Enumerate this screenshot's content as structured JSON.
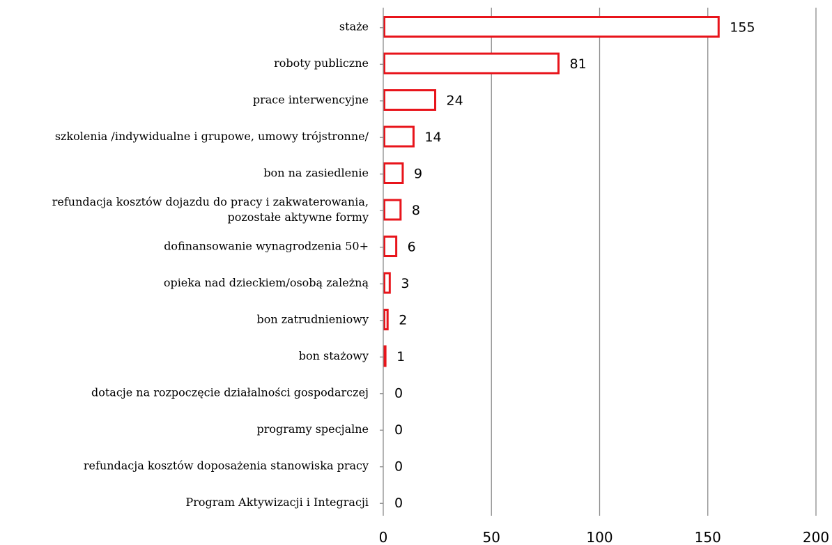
{
  "chart_data": {
    "type": "bar",
    "orientation": "horizontal",
    "title": "",
    "xlabel": "",
    "ylabel": "",
    "categories": [
      "staże",
      "roboty publiczne",
      "prace interwencyjne",
      "szkolenia /indywidualne i grupowe, umowy trójstronne/",
      "bon na  zasiedlenie",
      "refundacja kosztów dojazdu do pracy i zakwaterowania, pozostałe aktywne formy",
      "dofinansowanie wynagrodzenia 50+",
      "opieka nad dzieckiem/osobą zależną",
      "bon zatrudnieniowy",
      "bon stażowy",
      "dotacje na rozpoczęcie działalności gospodarczej",
      "programy specjalne",
      "refundacja kosztów doposażenia stanowiska pracy",
      "Program Aktywizacji i Integracji"
    ],
    "category_lines": [
      [
        "staże"
      ],
      [
        "roboty publiczne"
      ],
      [
        "prace interwencyjne"
      ],
      [
        "szkolenia /indywidualne i grupowe, umowy trójstronne/"
      ],
      [
        "bon na  zasiedlenie"
      ],
      [
        "refundacja kosztów dojazdu do pracy i zakwaterowania,",
        "pozostałe aktywne formy"
      ],
      [
        "dofinansowanie wynagrodzenia 50+"
      ],
      [
        "opieka nad dzieckiem/osobą zależną"
      ],
      [
        "bon zatrudnieniowy"
      ],
      [
        "bon stażowy"
      ],
      [
        "dotacje na rozpoczęcie działalności gospodarczej"
      ],
      [
        "programy specjalne"
      ],
      [
        "refundacja kosztów doposażenia stanowiska pracy"
      ],
      [
        "Program Aktywizacji i Integracji"
      ]
    ],
    "values": [
      155,
      81,
      24,
      14,
      9,
      8,
      6,
      3,
      2,
      1,
      0,
      0,
      0,
      0
    ],
    "xlim": [
      0,
      200
    ],
    "xticks": [
      0,
      50,
      100,
      150,
      200
    ],
    "grid": true,
    "legend": "none",
    "data_labels": true,
    "colors": {
      "bar_stroke": "#e8141b",
      "bar_fill": "#ffffff",
      "grid": "#8c8c8c"
    }
  }
}
